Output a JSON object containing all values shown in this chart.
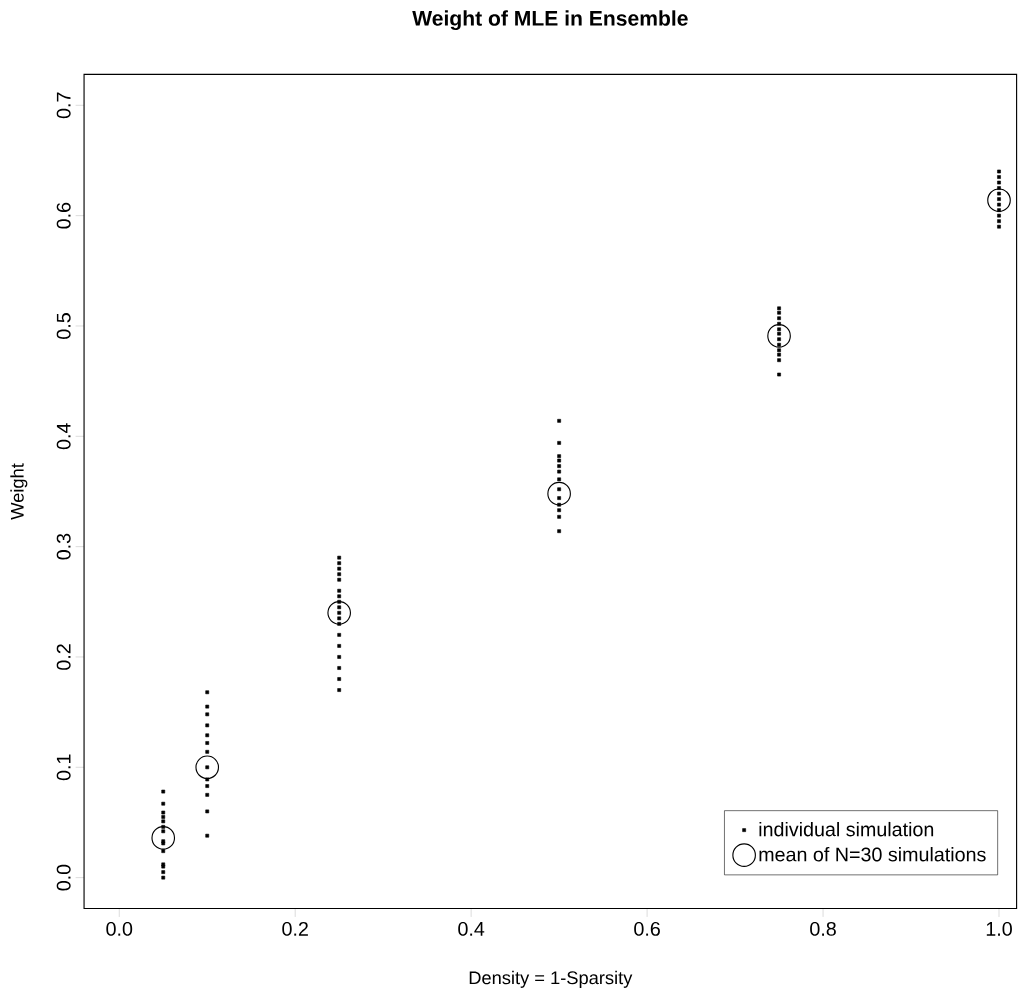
{
  "chart_data": {
    "type": "scatter",
    "title": "**Weight of MLE in Ensemble**",
    "xlabel": "Density = 1-Sparsity",
    "ylabel": "Weight",
    "xlim": [
      -0.04,
      1.02
    ],
    "ylim": [
      -0.028,
      0.728
    ],
    "xticks": [
      {
        "value": 0,
        "label": "0.0"
      },
      0.2,
      0.4,
      0.6,
      0.8,
      {
        "value": 1,
        "label": "1.0"
      }
    ],
    "yticks": [
      {
        "value": 0,
        "label": "0.0"
      },
      0.1,
      0.2,
      0.3,
      0.4,
      0.5,
      0.6,
      0.7
    ],
    "grid": false,
    "legend": "bottom right",
    "series": [
      {
        "name": "individual simulation",
        "color": "#000000",
        "marker": "square",
        "x": [
          0.05,
          0.05,
          0.05,
          0.05,
          0.05,
          0.05,
          0.05,
          0.05,
          0.05,
          0.05,
          0.05,
          0.05,
          0.05,
          0.05,
          0.1,
          0.1,
          0.1,
          0.1,
          0.1,
          0.1,
          0.1,
          0.1,
          0.1,
          0.1,
          0.1,
          0.1,
          0.1,
          0.25,
          0.25,
          0.25,
          0.25,
          0.25,
          0.25,
          0.25,
          0.25,
          0.25,
          0.25,
          0.25,
          0.25,
          0.25,
          0.25,
          0.25,
          0.25,
          0.25,
          0.25,
          0.5,
          0.5,
          0.5,
          0.5,
          0.5,
          0.5,
          0.5,
          0.5,
          0.5,
          0.5,
          0.5,
          0.5,
          0.5,
          0.75,
          0.75,
          0.75,
          0.75,
          0.75,
          0.75,
          0.75,
          0.75,
          0.75,
          0.75,
          0.75,
          0.75,
          1,
          1,
          1,
          1,
          1,
          1,
          1,
          1,
          1,
          1,
          1
        ],
        "values": [
          0.078,
          0.067,
          0.059,
          0.055,
          0.051,
          0.046,
          0.042,
          0.033,
          0.031,
          0.024,
          0.012,
          0.01,
          0.005,
          0.0,
          0.168,
          0.155,
          0.148,
          0.138,
          0.129,
          0.122,
          0.114,
          0.1,
          0.089,
          0.083,
          0.075,
          0.06,
          0.038,
          0.29,
          0.285,
          0.28,
          0.275,
          0.27,
          0.26,
          0.255,
          0.25,
          0.245,
          0.24,
          0.235,
          0.23,
          0.22,
          0.21,
          0.2,
          0.19,
          0.18,
          0.17,
          0.414,
          0.394,
          0.382,
          0.378,
          0.373,
          0.368,
          0.361,
          0.352,
          0.344,
          0.338,
          0.333,
          0.327,
          0.314,
          0.516,
          0.512,
          0.507,
          0.502,
          0.497,
          0.493,
          0.488,
          0.483,
          0.478,
          0.474,
          0.469,
          0.456,
          0.64,
          0.635,
          0.63,
          0.625,
          0.62,
          0.615,
          0.61,
          0.605,
          0.6,
          0.595,
          0.59
        ]
      },
      {
        "name": "mean of N=30 simulations",
        "color": "#000000",
        "marker": "circle",
        "x": [
          0.05,
          0.1,
          0.25,
          0.5,
          0.75,
          1
        ],
        "values": [
          0.036,
          0.1,
          0.24,
          0.348,
          0.491,
          0.614
        ]
      }
    ]
  }
}
